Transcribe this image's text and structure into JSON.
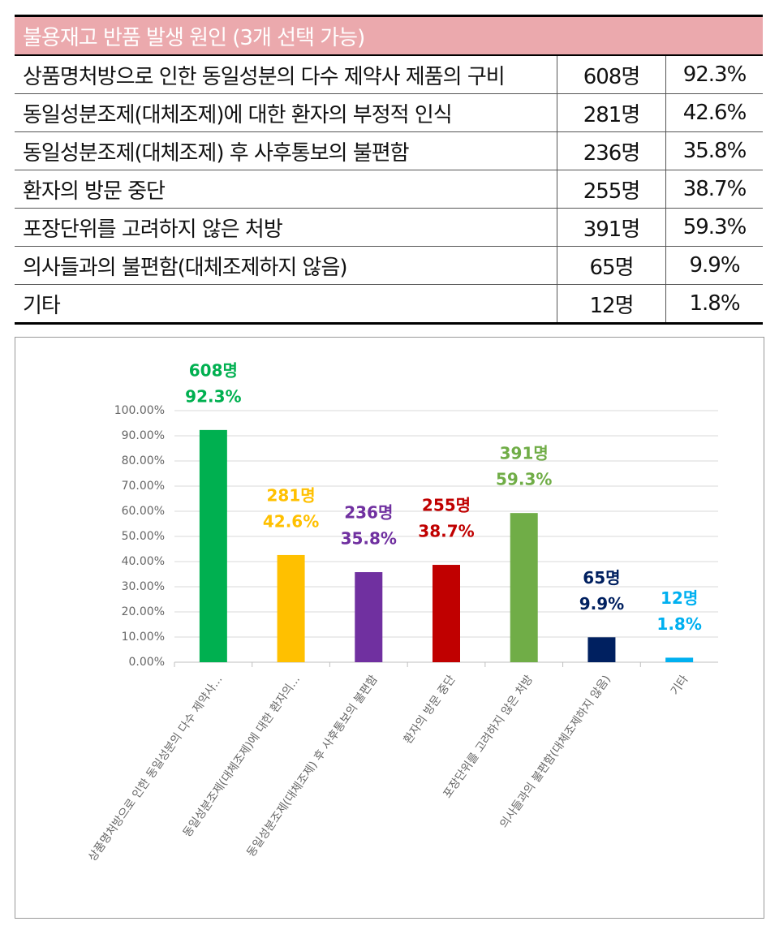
{
  "table": {
    "title": "불용재고 반품 발생 원인 (3개 선택 가능)",
    "rows": [
      [
        "상품명처방으로 인한 동일성분의 다수 제약사 제품의 구비",
        "608명",
        "92.3%"
      ],
      [
        "동일성분조제(대체조제)에 대한 환자의 부정적 인식",
        "281명",
        "42.6%"
      ],
      [
        "동일성분조제(대체조제) 후 사후통보의 불편함",
        "236명",
        "35.8%"
      ],
      [
        "환자의 방문 중단",
        "255명",
        "38.7%"
      ],
      [
        "포장단위를 고려하지 않은 처방",
        "391명",
        "59.3%"
      ],
      [
        "의사들과의 불편함(대체조제하지 않음)",
        "65명",
        "9.9%"
      ],
      [
        "기타",
        "12명",
        "1.8%"
      ]
    ]
  },
  "chart_data": {
    "type": "bar",
    "categories": [
      "상품명처방으로 인한 동일성분의 다수 제약사...",
      "동일성분조제(대체조제)에 대한 환자의...",
      "동일성분조제(대체조제) 후 사후통보의 불편함",
      "환자의 방문 중단",
      "포장단위를 고려하지 않은 처방",
      "의사들과의 불편함(대체조제하지 않음)",
      "기타"
    ],
    "values": [
      92.3,
      42.6,
      35.8,
      38.7,
      59.3,
      9.9,
      1.8
    ],
    "value_labels": [
      "92.3%",
      "42.6%",
      "35.8%",
      "38.7%",
      "59.3%",
      "9.9%",
      "1.8%"
    ],
    "count_labels": [
      "608명",
      "281명",
      "236명",
      "255명",
      "391명",
      "65명",
      "12명"
    ],
    "colors": [
      "#00b050",
      "#ffc000",
      "#7030a0",
      "#c00000",
      "#70ad47",
      "#002060",
      "#00b0f0"
    ],
    "ylim": [
      0,
      100
    ],
    "yticks": [
      {
        "value": 0,
        "label": "0.00%"
      },
      {
        "value": 10,
        "label": "10.00%"
      },
      {
        "value": 20,
        "label": "20.00%"
      },
      {
        "value": 30,
        "label": "30.00%"
      },
      {
        "value": 40,
        "label": "40.00%"
      },
      {
        "value": 50,
        "label": "50.00%"
      },
      {
        "value": 60,
        "label": "60.00%"
      },
      {
        "value": 70,
        "label": "70.00%"
      },
      {
        "value": 80,
        "label": "80.00%"
      },
      {
        "value": 90,
        "label": "90.00%"
      },
      {
        "value": 100,
        "label": "100.00%"
      }
    ],
    "grid": true
  }
}
